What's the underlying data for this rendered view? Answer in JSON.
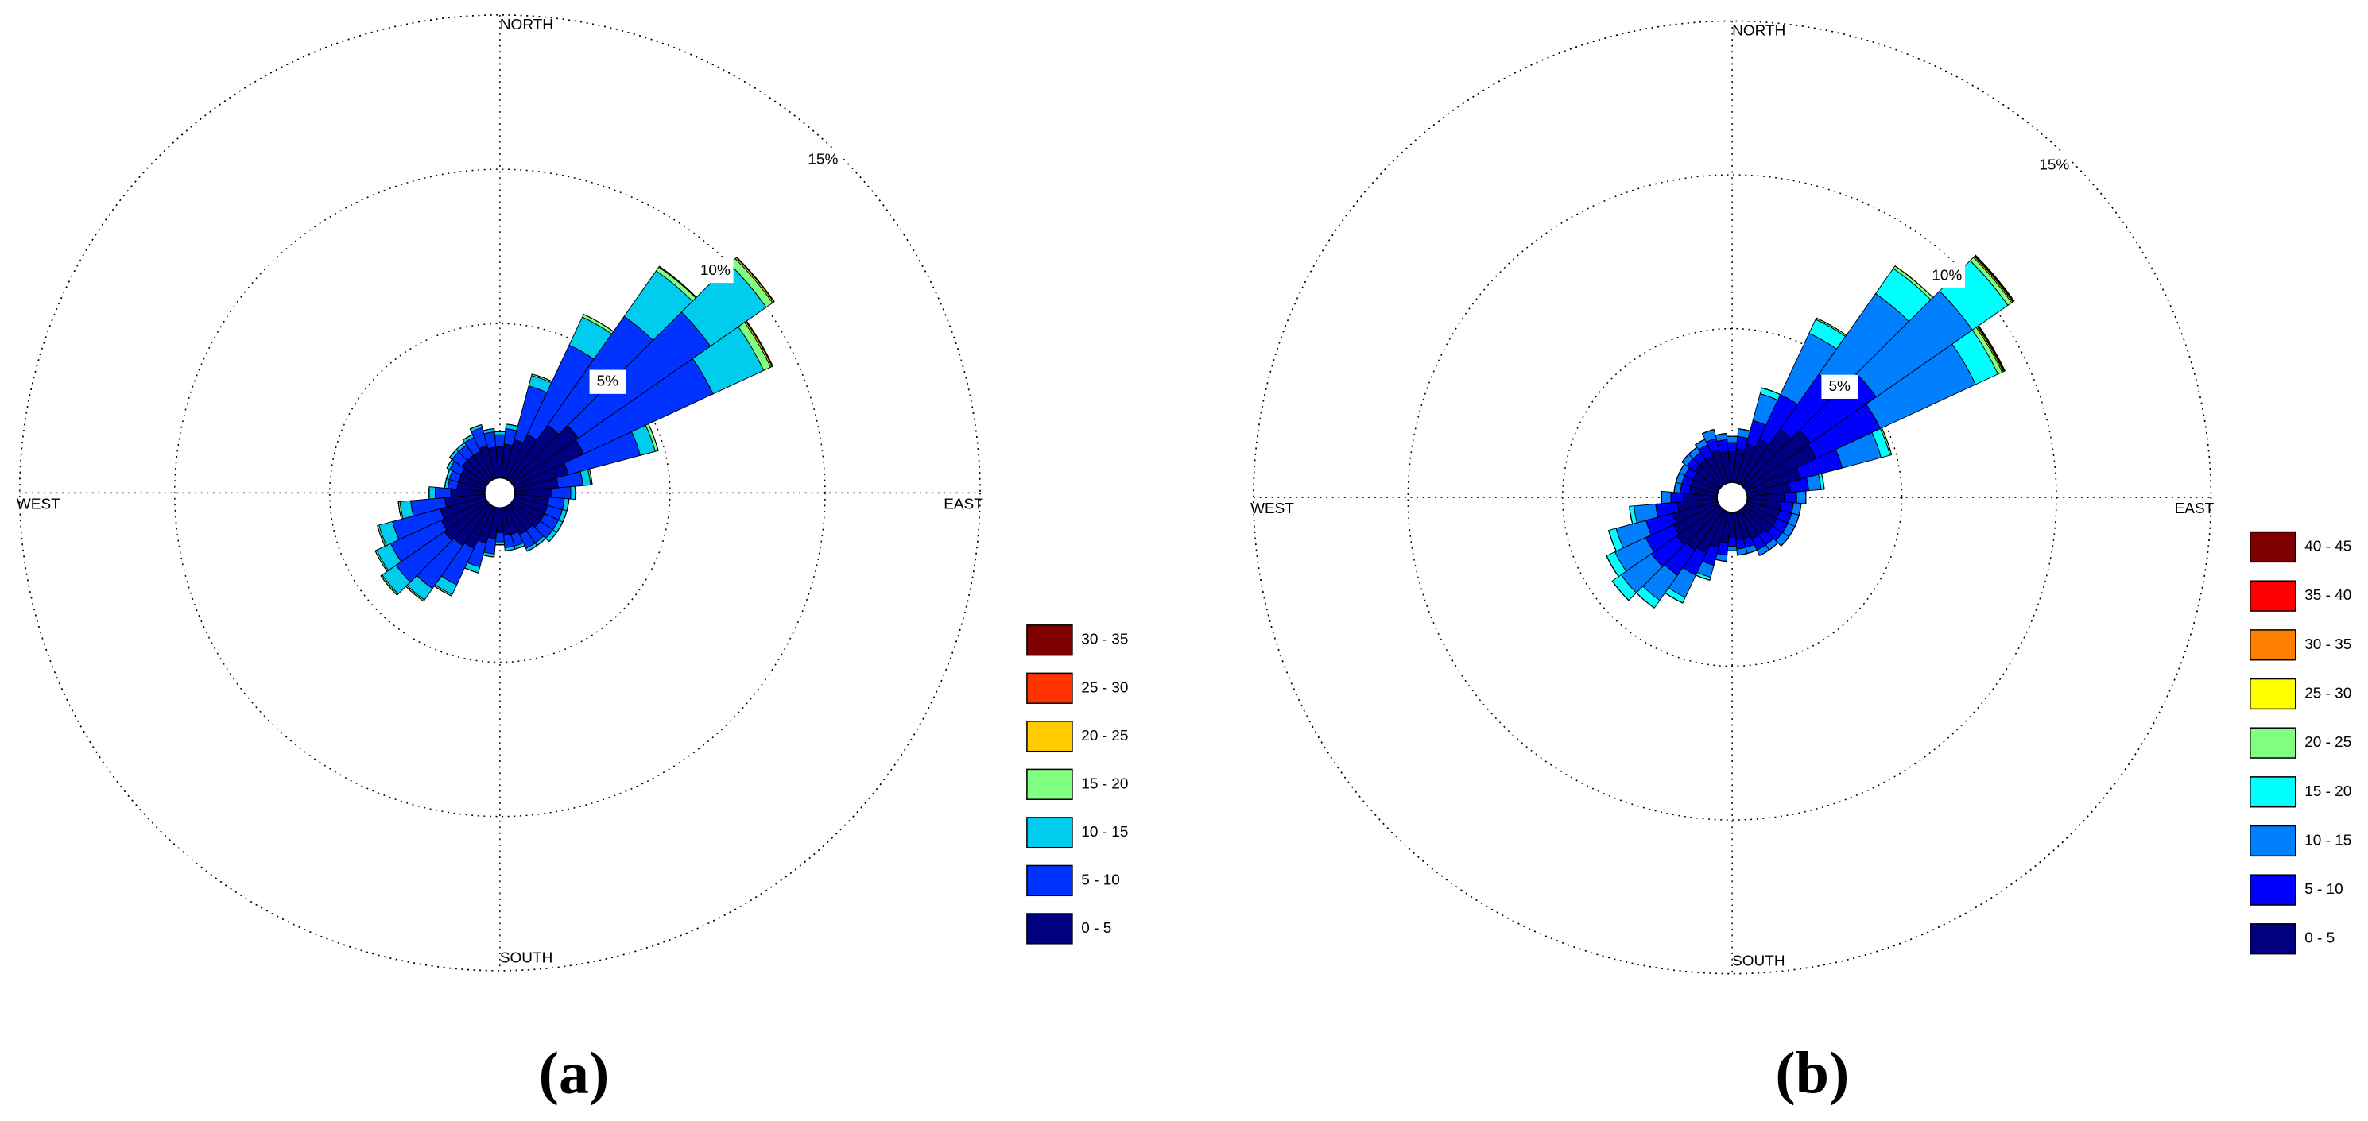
{
  "chart_data": [
    {
      "type": "wind_rose",
      "label": "(a)",
      "x": [
        0,
        10,
        20,
        30,
        40,
        50,
        60,
        70,
        80,
        90,
        100,
        110,
        120,
        130,
        140,
        150,
        160,
        170,
        180,
        190,
        200,
        210,
        220,
        230,
        240,
        250,
        260,
        270,
        280,
        290,
        300,
        310,
        320,
        330,
        340,
        350
      ],
      "compass_labels": [
        "NORTH",
        "EAST",
        "SOUTH",
        "WEST"
      ],
      "rlim": [
        0,
        15
      ],
      "rticks": [
        {
          "value": 5,
          "label": "5%"
        },
        {
          "value": 10,
          "label": "10%"
        },
        {
          "value": 15,
          "label": "15%"
        }
      ],
      "series": [
        {
          "name": "0 - 5",
          "color": "#000080",
          "values": [
            1.0,
            1.1,
            1.3,
            1.6,
            2.2,
            2.6,
            2.5,
            1.8,
            1.4,
            1.2,
            1.1,
            1.1,
            1.1,
            1.1,
            1.0,
            1.0,
            0.9,
            0.9,
            0.8,
            1.0,
            1.2,
            1.5,
            1.6,
            1.7,
            1.6,
            1.5,
            1.3,
            1.1,
            0.9,
            0.9,
            0.9,
            1.0,
            1.0,
            1.0,
            1.1,
            1.0
          ]
        },
        {
          "name": "5 - 10",
          "color": "#0033ff",
          "values": [
            0.4,
            0.5,
            1.8,
            3.2,
            4.3,
            5.2,
            4.6,
            2.4,
            0.8,
            0.6,
            0.5,
            0.5,
            0.5,
            0.5,
            0.5,
            0.5,
            0.4,
            0.4,
            0.3,
            0.5,
            0.8,
            1.3,
            1.7,
            1.9,
            1.8,
            1.6,
            1.1,
            0.5,
            0.3,
            0.3,
            0.4,
            0.4,
            0.4,
            0.5,
            0.6,
            0.5
          ]
        },
        {
          "name": "10 - 15",
          "color": "#00ccee",
          "values": [
            0.1,
            0.15,
            0.35,
            1.0,
            1.8,
            2.2,
            1.8,
            0.5,
            0.25,
            0.15,
            0.15,
            0.15,
            0.15,
            0.15,
            0.1,
            0.1,
            0.1,
            0.1,
            0.1,
            0.1,
            0.2,
            0.35,
            0.45,
            0.55,
            0.5,
            0.45,
            0.35,
            0.2,
            0.1,
            0.1,
            0.1,
            0.1,
            0.1,
            0.1,
            0.1,
            0.1
          ]
        },
        {
          "name": "15 - 20",
          "color": "#80ff80",
          "values": [
            0,
            0,
            0.05,
            0.1,
            0.15,
            0.25,
            0.25,
            0.1,
            0.05,
            0,
            0,
            0,
            0,
            0,
            0,
            0,
            0,
            0,
            0,
            0,
            0,
            0.05,
            0.05,
            0.05,
            0.05,
            0.05,
            0.05,
            0,
            0,
            0,
            0,
            0,
            0,
            0,
            0,
            0
          ]
        },
        {
          "name": "20 - 25",
          "color": "#ffcc00",
          "values": [
            0,
            0,
            0,
            0,
            0.03,
            0.05,
            0.05,
            0,
            0,
            0,
            0,
            0,
            0,
            0,
            0,
            0,
            0,
            0,
            0,
            0,
            0,
            0,
            0,
            0,
            0,
            0,
            0,
            0,
            0,
            0,
            0,
            0,
            0,
            0,
            0,
            0
          ]
        },
        {
          "name": "25 - 30",
          "color": "#ff3300",
          "values": [
            0,
            0,
            0,
            0,
            0,
            0.02,
            0.02,
            0,
            0,
            0,
            0,
            0,
            0,
            0,
            0,
            0,
            0,
            0,
            0,
            0,
            0,
            0,
            0,
            0,
            0,
            0,
            0,
            0,
            0,
            0,
            0,
            0,
            0,
            0,
            0,
            0
          ]
        },
        {
          "name": "30 - 35",
          "color": "#800000",
          "values": [
            0,
            0,
            0,
            0,
            0,
            0,
            0.01,
            0,
            0,
            0,
            0,
            0,
            0,
            0,
            0,
            0,
            0,
            0,
            0,
            0,
            0,
            0,
            0,
            0,
            0,
            0,
            0,
            0,
            0,
            0,
            0,
            0,
            0,
            0,
            0,
            0
          ]
        }
      ]
    },
    {
      "type": "wind_rose",
      "label": "(b)",
      "x": [
        0,
        10,
        20,
        30,
        40,
        50,
        60,
        70,
        80,
        90,
        100,
        110,
        120,
        130,
        140,
        150,
        160,
        170,
        180,
        190,
        200,
        210,
        220,
        230,
        240,
        250,
        260,
        270,
        280,
        290,
        300,
        310,
        320,
        330,
        340,
        350
      ],
      "compass_labels": [
        "NORTH",
        "EAST",
        "SOUTH",
        "WEST"
      ],
      "rlim": [
        0,
        15
      ],
      "rticks": [
        {
          "value": 5,
          "label": "5%"
        },
        {
          "value": 10,
          "label": "10%"
        },
        {
          "value": 15,
          "label": "15%"
        }
      ],
      "series": [
        {
          "name": "0 - 5",
          "color": "#000080",
          "values": [
            1.0,
            1.1,
            1.3,
            1.6,
            2.2,
            2.6,
            2.5,
            1.8,
            1.4,
            1.2,
            1.1,
            1.1,
            1.1,
            1.1,
            1.0,
            1.0,
            0.9,
            0.9,
            0.8,
            1.0,
            1.2,
            1.5,
            1.6,
            1.7,
            1.6,
            1.5,
            1.3,
            1.1,
            0.9,
            0.9,
            0.9,
            1.0,
            1.0,
            1.0,
            1.1,
            1.0
          ]
        },
        {
          "name": "5 - 10",
          "color": "#0000ff",
          "values": [
            0.3,
            0.4,
            0.8,
            1.6,
            2.2,
            2.6,
            2.3,
            1.4,
            0.6,
            0.4,
            0.4,
            0.4,
            0.4,
            0.4,
            0.4,
            0.4,
            0.3,
            0.3,
            0.3,
            0.4,
            0.6,
            0.8,
            1.0,
            1.0,
            1.0,
            0.9,
            0.7,
            0.4,
            0.3,
            0.3,
            0.3,
            0.3,
            0.3,
            0.4,
            0.4,
            0.4
          ]
        },
        {
          "name": "10 - 15",
          "color": "#0080ff",
          "values": [
            0.2,
            0.25,
            0.9,
            2.2,
            3.2,
            3.8,
            3.4,
            1.3,
            0.4,
            0.3,
            0.25,
            0.25,
            0.25,
            0.25,
            0.2,
            0.2,
            0.2,
            0.2,
            0.15,
            0.2,
            0.4,
            0.8,
            1.0,
            1.2,
            1.1,
            1.0,
            0.7,
            0.3,
            0.2,
            0.2,
            0.2,
            0.2,
            0.2,
            0.2,
            0.3,
            0.2
          ]
        },
        {
          "name": "15 - 20",
          "color": "#00ffff",
          "values": [
            0,
            0,
            0.2,
            0.5,
            1.0,
            1.4,
            0.8,
            0.3,
            0.1,
            0,
            0,
            0,
            0,
            0,
            0,
            0,
            0,
            0,
            0,
            0,
            0.1,
            0.2,
            0.3,
            0.35,
            0.3,
            0.25,
            0.15,
            0,
            0,
            0,
            0,
            0,
            0,
            0,
            0,
            0
          ]
        },
        {
          "name": "20 - 25",
          "color": "#80ff80",
          "values": [
            0,
            0,
            0,
            0.05,
            0.1,
            0.15,
            0.15,
            0.05,
            0,
            0,
            0,
            0,
            0,
            0,
            0,
            0,
            0,
            0,
            0,
            0,
            0,
            0,
            0,
            0,
            0,
            0,
            0,
            0,
            0,
            0,
            0,
            0,
            0,
            0,
            0,
            0
          ]
        },
        {
          "name": "25 - 30",
          "color": "#ffff00",
          "values": [
            0,
            0,
            0,
            0,
            0,
            0.04,
            0.04,
            0,
            0,
            0,
            0,
            0,
            0,
            0,
            0,
            0,
            0,
            0,
            0,
            0,
            0,
            0,
            0,
            0,
            0,
            0,
            0,
            0,
            0,
            0,
            0,
            0,
            0,
            0,
            0,
            0
          ]
        },
        {
          "name": "30 - 35",
          "color": "#ff8000",
          "values": [
            0,
            0,
            0,
            0,
            0,
            0.03,
            0.03,
            0,
            0,
            0,
            0,
            0,
            0,
            0,
            0,
            0,
            0,
            0,
            0,
            0,
            0,
            0,
            0,
            0,
            0,
            0,
            0,
            0,
            0,
            0,
            0,
            0,
            0,
            0,
            0,
            0
          ]
        },
        {
          "name": "35 - 40",
          "color": "#ff0000",
          "values": [
            0,
            0,
            0,
            0,
            0,
            0.02,
            0.02,
            0,
            0,
            0,
            0,
            0,
            0,
            0,
            0,
            0,
            0,
            0,
            0,
            0,
            0,
            0,
            0,
            0,
            0,
            0,
            0,
            0,
            0,
            0,
            0,
            0,
            0,
            0,
            0,
            0
          ]
        },
        {
          "name": "40 - 45",
          "color": "#800000",
          "values": [
            0,
            0,
            0,
            0,
            0,
            0.01,
            0.01,
            0,
            0,
            0,
            0,
            0,
            0,
            0,
            0,
            0,
            0,
            0,
            0,
            0,
            0,
            0,
            0,
            0,
            0,
            0,
            0,
            0,
            0,
            0,
            0,
            0,
            0,
            0,
            0,
            0
          ]
        }
      ]
    }
  ]
}
